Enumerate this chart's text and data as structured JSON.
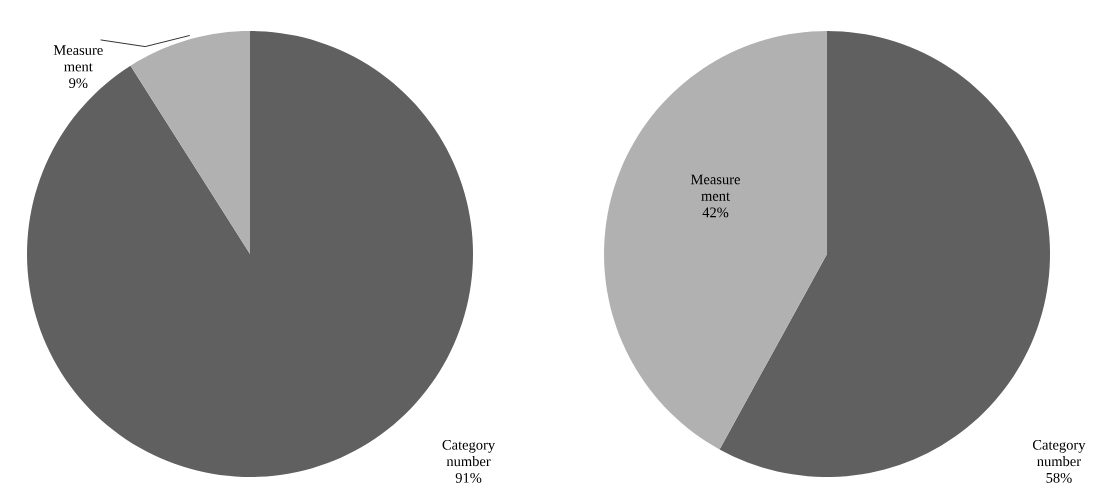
{
  "chart_data": [
    {
      "type": "pie",
      "categories": [
        "Category number",
        "Measure ment"
      ],
      "values": [
        91,
        9
      ],
      "value_labels": [
        "91%",
        "9%"
      ],
      "colors": [
        "#606060",
        "#b1b1b1"
      ]
    },
    {
      "type": "pie",
      "categories": [
        "Category number",
        "Measure ment"
      ],
      "values": [
        58,
        42
      ],
      "value_labels": [
        "58%",
        "42%"
      ],
      "colors": [
        "#606060",
        "#b1b1b1"
      ]
    }
  ]
}
